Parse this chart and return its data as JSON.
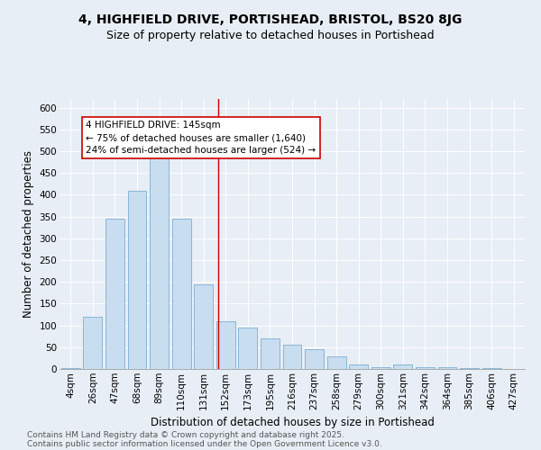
{
  "title1": "4, HIGHFIELD DRIVE, PORTISHEAD, BRISTOL, BS20 8JG",
  "title2": "Size of property relative to detached houses in Portishead",
  "xlabel": "Distribution of detached houses by size in Portishead",
  "ylabel": "Number of detached properties",
  "categories": [
    "4sqm",
    "26sqm",
    "47sqm",
    "68sqm",
    "89sqm",
    "110sqm",
    "131sqm",
    "152sqm",
    "173sqm",
    "195sqm",
    "216sqm",
    "237sqm",
    "258sqm",
    "279sqm",
    "300sqm",
    "321sqm",
    "342sqm",
    "364sqm",
    "385sqm",
    "406sqm",
    "427sqm"
  ],
  "values": [
    3,
    120,
    345,
    410,
    510,
    345,
    195,
    110,
    95,
    70,
    55,
    45,
    28,
    10,
    5,
    10,
    5,
    5,
    2,
    2,
    1
  ],
  "bar_color": "#c9ddf0",
  "bar_edge_color": "#7bafd4",
  "vline_color": "#cc0000",
  "vline_pos": 6.67,
  "annotation_text": "4 HIGHFIELD DRIVE: 145sqm\n← 75% of detached houses are smaller (1,640)\n24% of semi-detached houses are larger (524) →",
  "annotation_box_color": "#ffffff",
  "annotation_box_edge_color": "#cc0000",
  "ylim": [
    0,
    620
  ],
  "yticks": [
    0,
    50,
    100,
    150,
    200,
    250,
    300,
    350,
    400,
    450,
    500,
    550,
    600
  ],
  "background_color": "#e8eef5",
  "grid_color": "#ffffff",
  "footer1": "Contains HM Land Registry data © Crown copyright and database right 2025.",
  "footer2": "Contains public sector information licensed under the Open Government Licence v3.0.",
  "title1_fontsize": 10,
  "title2_fontsize": 9,
  "xlabel_fontsize": 8.5,
  "ylabel_fontsize": 8.5,
  "tick_fontsize": 7.5,
  "annotation_fontsize": 7.5,
  "footer_fontsize": 6.5
}
